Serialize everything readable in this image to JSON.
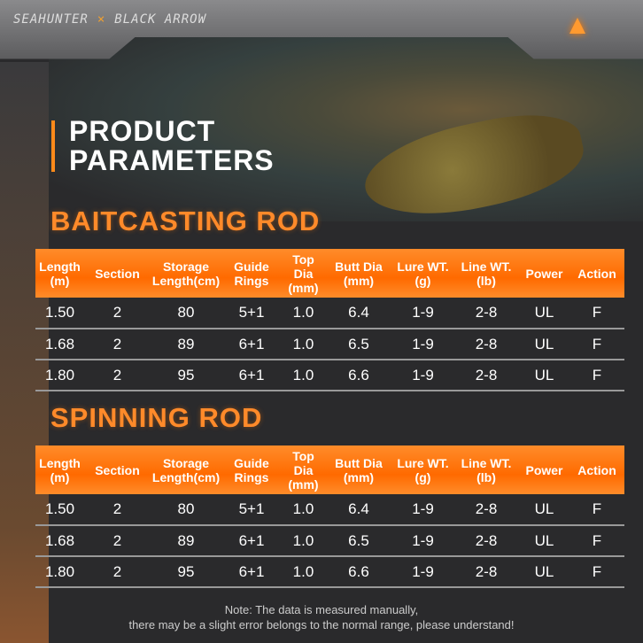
{
  "brand": {
    "left": "SEAHUNTER",
    "sep": "×",
    "right": "BLACK ARROW"
  },
  "title": {
    "line1": "PRODUCT",
    "line2": "PARAMETERS"
  },
  "accent_color": "#ff7a10",
  "columns": [
    [
      "Length",
      "(m)"
    ],
    [
      "Section",
      ""
    ],
    [
      "Storage",
      "Length(cm)"
    ],
    [
      "Guide",
      "Rings"
    ],
    [
      "Top Dia",
      "(mm)"
    ],
    [
      "Butt Dia",
      "(mm)"
    ],
    [
      "Lure WT.",
      "(g)"
    ],
    [
      "Line WT.",
      "(lb)"
    ],
    [
      "Power",
      ""
    ],
    [
      "Action",
      ""
    ]
  ],
  "tables": [
    {
      "title": "BAITCASTING ROD",
      "rows": [
        [
          "1.50",
          "2",
          "80",
          "5+1",
          "1.0",
          "6.4",
          "1-9",
          "2-8",
          "UL",
          "F"
        ],
        [
          "1.68",
          "2",
          "89",
          "6+1",
          "1.0",
          "6.5",
          "1-9",
          "2-8",
          "UL",
          "F"
        ],
        [
          "1.80",
          "2",
          "95",
          "6+1",
          "1.0",
          "6.6",
          "1-9",
          "2-8",
          "UL",
          "F"
        ]
      ]
    },
    {
      "title": "SPINNING ROD",
      "rows": [
        [
          "1.50",
          "2",
          "80",
          "5+1",
          "1.0",
          "6.4",
          "1-9",
          "2-8",
          "UL",
          "F"
        ],
        [
          "1.68",
          "2",
          "89",
          "6+1",
          "1.0",
          "6.5",
          "1-9",
          "2-8",
          "UL",
          "F"
        ],
        [
          "1.80",
          "2",
          "95",
          "6+1",
          "1.0",
          "6.6",
          "1-9",
          "2-8",
          "UL",
          "F"
        ]
      ]
    }
  ],
  "note": {
    "line1": "Note: The data is measured manually,",
    "line2": "there may be a slight error belongs to the normal range, please understand!"
  }
}
